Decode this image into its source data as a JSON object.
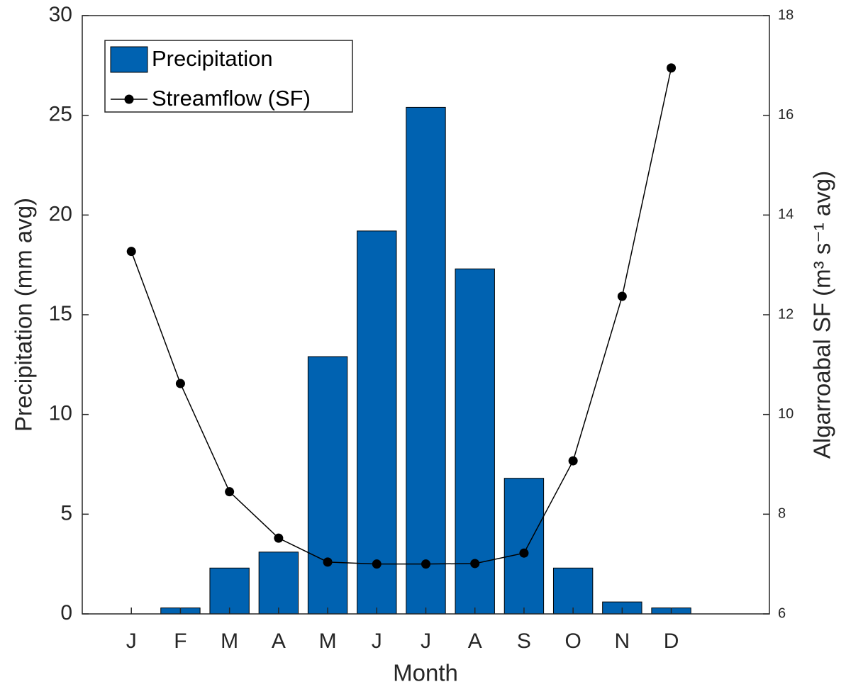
{
  "chart_data": {
    "type": "bar",
    "xlabel": "Month",
    "ylabel": "Precipitation (mm avg)",
    "y2label": "Algarroabal SF (m³ s⁻¹ avg)",
    "categories": [
      "J",
      "F",
      "M",
      "A",
      "M",
      "J",
      "J",
      "A",
      "S",
      "O",
      "N",
      "D"
    ],
    "series": [
      {
        "name": "Precipitation",
        "type": "bar",
        "color": "#0062b1",
        "axis": "y",
        "values": [
          0,
          0.3,
          2.3,
          3.1,
          12.9,
          19.2,
          25.4,
          17.3,
          6.8,
          2.3,
          0.6,
          0.3
        ]
      },
      {
        "name": "Streamflow (SF)",
        "type": "line",
        "color": "#000000",
        "axis": "y2",
        "values": [
          13.27,
          10.62,
          8.45,
          7.52,
          7.04,
          7.0,
          7.0,
          7.01,
          7.22,
          9.07,
          12.37,
          16.95
        ]
      }
    ],
    "ylim": [
      0,
      30
    ],
    "yticks": [
      0,
      5,
      10,
      15,
      20,
      25,
      30
    ],
    "y2lim": [
      6,
      18
    ],
    "y2ticks": [
      6,
      8,
      10,
      12,
      14,
      16,
      18
    ],
    "legend": "upper left"
  }
}
